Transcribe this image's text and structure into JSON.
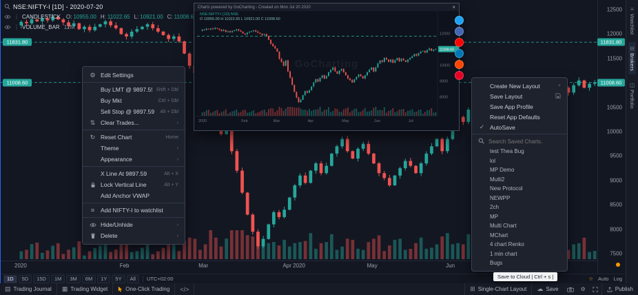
{
  "app": {
    "bg": "#131722",
    "accent": "#2962ff",
    "up_color": "#26a69a",
    "down_color": "#ef5350"
  },
  "icons": {
    "gear": "⚙",
    "cloud": "☁",
    "check": "✓",
    "chevron": "›",
    "plus": "+",
    "reset": "↻",
    "clear_trades": "⇅",
    "close": "×",
    "journal": "▤",
    "widget": "▦",
    "layout_grid": "⊞",
    "star": "☆",
    "watchlist_add": "≡",
    "code": "</>",
    "kebab": "⋮",
    "watchlist": "≡",
    "brokers": "⊟",
    "portfolio": "◫"
  },
  "header": {
    "symbol": "NSE:NIFTY-I [1D] - 2020-07-20",
    "series": "CANDLESTICK",
    "ohlc": [
      {
        "k": "O:",
        "v": "10955.00"
      },
      {
        "k": "H:",
        "v": "11022.65"
      },
      {
        "k": "L:",
        "v": "10921.00"
      },
      {
        "k": "C:",
        "v": "11008.60"
      }
    ],
    "volume_label": "VOLUME_BAR",
    "volume_value": "12M"
  },
  "main_chart": {
    "p_max": 12500,
    "p_min": 7500,
    "lines": [
      11831.8,
      11008.6
    ],
    "price_path": [
      12180,
      12250,
      12220,
      12300,
      12260,
      12320,
      12280,
      12350,
      12300,
      12240,
      12160,
      12220,
      12100,
      12150,
      12080,
      12150,
      12200,
      12260,
      12180,
      12120,
      12000,
      11950,
      12050,
      12100,
      12150,
      12200,
      12120,
      12050,
      11980,
      11900,
      11950,
      11850,
      11600,
      11350,
      11200,
      11050,
      10850,
      10400,
      10200,
      9950,
      10300,
      9600,
      9200,
      8750,
      8300,
      7950,
      7650,
      7800,
      8100,
      8350,
      8250,
      8400,
      8650,
      8900,
      9100,
      8950,
      9200,
      9350,
      9150,
      9300,
      9550,
      9700,
      9850,
      9600,
      9450,
      9650,
      9750,
      9550,
      9350,
      9150,
      9050,
      8900,
      9100,
      9250,
      9400,
      9300,
      9150,
      9350,
      9550,
      9700,
      9850,
      9600,
      9850,
      10100,
      10300,
      10200,
      10450,
      10350,
      10200,
      10350,
      10150,
      10300,
      10450,
      10250,
      10400,
      10300,
      10200,
      10350,
      10450,
      10550,
      10700,
      10600,
      10750,
      10850,
      10900,
      10800,
      10950,
      11050,
      10900,
      10980,
      11008
    ],
    "months": [
      {
        "label": "2020",
        "idx": 0
      },
      {
        "label": "Feb",
        "idx": 20
      },
      {
        "label": "Mar",
        "idx": 35
      },
      {
        "label": "Apr 2020",
        "idx": 51
      },
      {
        "label": "May",
        "idx": 67
      },
      {
        "label": "Jun",
        "idx": 82
      }
    ]
  },
  "price_axis": {
    "ticks": [
      12500,
      12000,
      11500,
      11000,
      10500,
      10000,
      9500,
      9000,
      8500,
      8000,
      7500
    ],
    "badges": [
      {
        "label": "11831.80",
        "price": 11831.8
      },
      {
        "label": "11008.60",
        "price": 11008.6
      }
    ]
  },
  "context_menu": {
    "items": [
      {
        "icon": "gear",
        "label": "Edit Settings"
      },
      {
        "divider": true
      },
      {
        "label": "Buy LMT @ 9897.59",
        "shortcut": "Shift + Dbl"
      },
      {
        "label": "Buy Mkt",
        "shortcut": "Ctrl + Dbl"
      },
      {
        "label": "Sell Stop @ 9897.59",
        "shortcut": "Alt + Dbl"
      },
      {
        "icon": "clear_trades",
        "label": "Clear Trades...",
        "submenu": true
      },
      {
        "divider": true
      },
      {
        "icon": "reset",
        "label": "Reset Chart",
        "shortcut": "Home"
      },
      {
        "label": "Theme",
        "submenu": true
      },
      {
        "label": "Appearance",
        "submenu": true
      },
      {
        "divider": true
      },
      {
        "label": "X Line At 9897.59",
        "shortcut": "Alt + X"
      },
      {
        "icon": "lock",
        "label": "Lock Vertical Line",
        "shortcut": "Alt + Y"
      },
      {
        "label": "Add Anchor VWAP"
      },
      {
        "divider": true
      },
      {
        "icon": "watchlist_add",
        "label": "Add NIFTY-I to watchlist"
      },
      {
        "divider": true
      },
      {
        "icon": "eye",
        "label": "Hide/Unhide",
        "submenu": true
      },
      {
        "icon": "trash",
        "label": "Delete",
        "submenu": true
      }
    ]
  },
  "layout_menu": {
    "items": [
      {
        "label": "Create New Layout",
        "right": "plus"
      },
      {
        "label": "Save Layout",
        "right": "floppy"
      },
      {
        "label": "Save App Profile"
      },
      {
        "label": "Reset App Defaults"
      },
      {
        "icon": "check",
        "label": "AutoSave"
      }
    ],
    "search_placeholder": "Search Saved Charts.",
    "saved_charts": [
      "test Thea Bug",
      "lol",
      "MP Demo",
      "Multi2",
      "New Protocol",
      "NEWPP",
      "2ch",
      "MP",
      "Multi Chart",
      "MChart",
      "4 chart Renko",
      "1 min chart",
      "Bugs"
    ]
  },
  "popup": {
    "title": "Charts powered by GoCharting - Created on Mon Jul 20 2020",
    "watermark": "GoCharting",
    "legend1": "NSE:NIFTY-I [1D] NSE",
    "legend2": "O 10955.00  H 11022.65  L 10921.00  C 11008.60",
    "badge": {
      "label": "11008.60",
      "price": 11008.6
    },
    "ticks": [
      12000,
      11000,
      10000,
      9000,
      8000
    ],
    "months": [
      {
        "label": "2020",
        "idx": 0
      },
      {
        "label": "Feb",
        "idx": 20
      },
      {
        "label": "Mar",
        "idx": 35
      },
      {
        "label": "Apr",
        "idx": 51
      },
      {
        "label": "May",
        "idx": 67
      },
      {
        "label": "Jun",
        "idx": 82
      },
      {
        "label": "Jul",
        "idx": 98
      }
    ],
    "share_icons": [
      {
        "name": "twitter",
        "color": "#1da1f2"
      },
      {
        "name": "facebook",
        "color": "#4267b2"
      },
      {
        "name": "youtube",
        "color": "#ff0000"
      },
      {
        "name": "linkedin",
        "color": "#0077b5"
      },
      {
        "name": "reddit",
        "color": "#ff4500"
      },
      {
        "name": "pinterest",
        "color": "#e60023"
      }
    ]
  },
  "range_bar": {
    "ranges": [
      "1D",
      "5D",
      "15D",
      "1M",
      "3M",
      "6M",
      "1Y",
      "5Y",
      "All"
    ],
    "active": "1D",
    "timezone": "UTC+02:00",
    "auto": "Auto",
    "log": "Log"
  },
  "side_tabs": [
    {
      "label": "Watchlist",
      "icon": "watchlist"
    },
    {
      "label": "Brokers",
      "icon": "brokers"
    },
    {
      "label": "Portfolio",
      "icon": "portfolio"
    }
  ],
  "status_bar": {
    "left": [
      {
        "icon": "journal",
        "label": "Trading Journal"
      },
      {
        "icon": "widget",
        "label": "Trading Widget"
      },
      {
        "icon": "cursor",
        "label": "One-Click Trading",
        "icon_color": "#f7a600"
      },
      {
        "icon": "code",
        "label": ""
      }
    ],
    "right": [
      {
        "icon": "layout_grid",
        "label": "Single-Chart Layout"
      },
      {
        "icon": "cloud",
        "label": "Save"
      }
    ],
    "tool_icons": [
      "camera",
      "gear",
      "fullscreen"
    ],
    "publish": {
      "icon": "publish",
      "label": "Publish"
    }
  },
  "tooltip": {
    "text": "Save to Cloud | Ctrl + s |"
  }
}
